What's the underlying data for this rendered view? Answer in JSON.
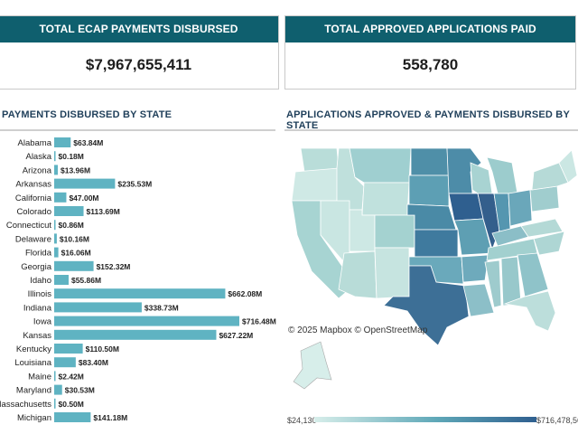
{
  "kpis": {
    "payments": {
      "title": "TOTAL ECAP PAYMENTS DISBURSED",
      "value": "$7,967,655,411"
    },
    "applications": {
      "title": "TOTAL APPROVED APPLICATIONS PAID",
      "value": "558,780"
    }
  },
  "sections": {
    "bar_title": "PAYMENTS DISBURSED BY STATE",
    "map_title": "APPLICATIONS APPROVED & PAYMENTS DISBURSED BY STATE"
  },
  "map": {
    "credit": "© 2025 Mapbox © OpenStreetMap",
    "legend_min": "$24,130",
    "legend_max": "$716,478,56"
  },
  "colors": {
    "header": "#0f5f6e",
    "bar": "#5fb3c2",
    "map_low": "#d7eeea",
    "map_high": "#2f5f8f"
  },
  "chart_data": {
    "type": "bar",
    "orientation": "horizontal",
    "title": "PAYMENTS DISBURSED BY STATE",
    "unit": "$M",
    "categories": [
      "Alabama",
      "Alaska",
      "Arizona",
      "Arkansas",
      "California",
      "Colorado",
      "Connecticut",
      "Delaware",
      "Florida",
      "Georgia",
      "Idaho",
      "Illinois",
      "Indiana",
      "Iowa",
      "Kansas",
      "Kentucky",
      "Louisiana",
      "Maine",
      "Maryland",
      "Massachusetts",
      "Michigan"
    ],
    "values": [
      63.84,
      0.18,
      13.96,
      235.53,
      47.0,
      113.69,
      0.86,
      10.16,
      16.06,
      152.32,
      55.86,
      662.08,
      338.73,
      716.48,
      627.22,
      110.5,
      83.4,
      2.42,
      30.53,
      0.5,
      141.18
    ],
    "labels": [
      "$63.84M",
      "$0.18M",
      "$13.96M",
      "$235.53M",
      "$47.00M",
      "$113.69M",
      "$0.86M",
      "$10.16M",
      "$16.06M",
      "$152.32M",
      "$55.86M",
      "$662.08M",
      "$338.73M",
      "$716.48M",
      "$627.22M",
      "$110.50M",
      "$83.40M",
      "$2.42M",
      "$30.53M",
      "$0.50M",
      "$141.18M"
    ],
    "xlim": [
      0,
      716.48
    ],
    "grid": false,
    "legend": "none"
  }
}
